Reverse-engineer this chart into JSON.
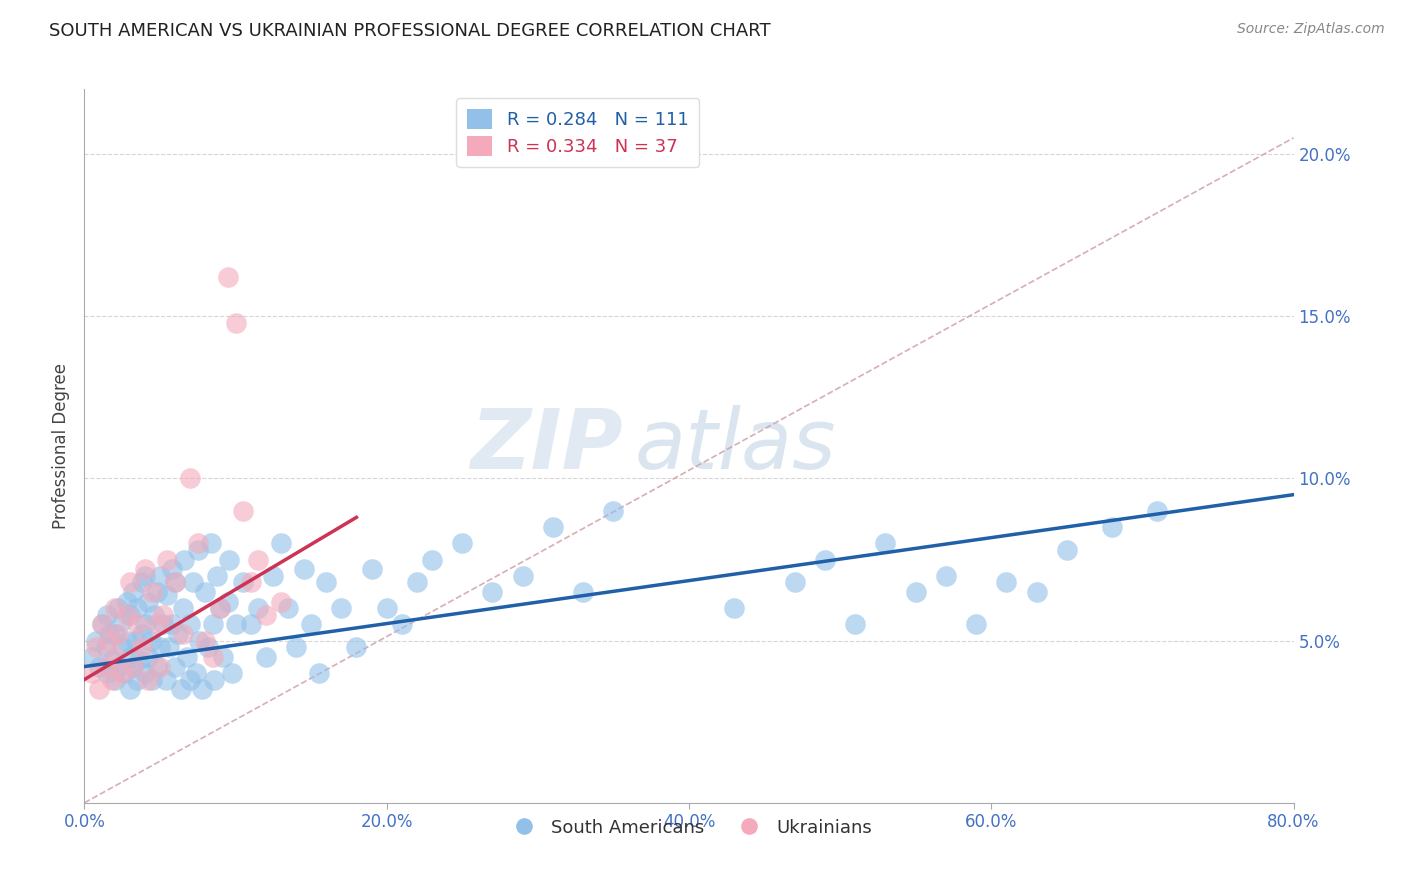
{
  "title": "SOUTH AMERICAN VS UKRAINIAN PROFESSIONAL DEGREE CORRELATION CHART",
  "source": "Source: ZipAtlas.com",
  "ylabel": "Professional Degree",
  "xlim": [
    0.0,
    0.8
  ],
  "ylim": [
    0.0,
    0.22
  ],
  "xticks": [
    0.0,
    0.2,
    0.4,
    0.6,
    0.8
  ],
  "xtick_labels": [
    "0.0%",
    "20.0%",
    "40.0%",
    "60.0%",
    "80.0%"
  ],
  "yticks": [
    0.0,
    0.05,
    0.1,
    0.15,
    0.2
  ],
  "ytick_labels": [
    "",
    "5.0%",
    "10.0%",
    "15.0%",
    "20.0%"
  ],
  "blue_color": "#92C0E8",
  "pink_color": "#F4AABB",
  "blue_line_color": "#2060A8",
  "pink_line_color": "#CC3355",
  "ref_line_color": "#D0A0A8",
  "legend_blue_label": "R = 0.284   N = 111",
  "legend_pink_label": "R = 0.334   N = 37",
  "bottom_legend_blue": "South Americans",
  "bottom_legend_pink": "Ukrainians",
  "watermark_zip": "ZIP",
  "watermark_atlas": "atlas",
  "blue_line_x0": 0.0,
  "blue_line_x1": 0.8,
  "blue_line_y0": 0.042,
  "blue_line_y1": 0.095,
  "pink_line_x0": 0.0,
  "pink_line_x1": 0.18,
  "pink_line_y0": 0.038,
  "pink_line_y1": 0.088,
  "ref_line_x0": 0.0,
  "ref_line_x1": 0.8,
  "ref_line_y0": 0.0,
  "ref_line_y1": 0.205,
  "background_color": "#FFFFFF",
  "title_color": "#222222",
  "axis_tick_color": "#4472C4",
  "grid_color": "#CCCCCC",
  "blue_scatter_x": [
    0.005,
    0.008,
    0.01,
    0.012,
    0.014,
    0.015,
    0.015,
    0.016,
    0.018,
    0.02,
    0.02,
    0.022,
    0.022,
    0.025,
    0.025,
    0.026,
    0.028,
    0.028,
    0.03,
    0.03,
    0.03,
    0.032,
    0.032,
    0.034,
    0.035,
    0.035,
    0.036,
    0.038,
    0.038,
    0.04,
    0.04,
    0.04,
    0.042,
    0.042,
    0.044,
    0.045,
    0.046,
    0.048,
    0.048,
    0.05,
    0.05,
    0.052,
    0.054,
    0.055,
    0.056,
    0.058,
    0.058,
    0.06,
    0.06,
    0.062,
    0.064,
    0.065,
    0.066,
    0.068,
    0.07,
    0.07,
    0.072,
    0.074,
    0.075,
    0.076,
    0.078,
    0.08,
    0.082,
    0.084,
    0.085,
    0.086,
    0.088,
    0.09,
    0.092,
    0.095,
    0.096,
    0.098,
    0.1,
    0.105,
    0.11,
    0.115,
    0.12,
    0.125,
    0.13,
    0.135,
    0.14,
    0.145,
    0.15,
    0.155,
    0.16,
    0.17,
    0.18,
    0.19,
    0.2,
    0.21,
    0.22,
    0.23,
    0.25,
    0.27,
    0.29,
    0.31,
    0.33,
    0.35,
    0.43,
    0.47,
    0.49,
    0.51,
    0.53,
    0.55,
    0.57,
    0.59,
    0.61,
    0.63,
    0.65,
    0.68,
    0.71
  ],
  "blue_scatter_y": [
    0.045,
    0.05,
    0.042,
    0.055,
    0.048,
    0.04,
    0.058,
    0.052,
    0.044,
    0.038,
    0.052,
    0.042,
    0.06,
    0.048,
    0.056,
    0.04,
    0.05,
    0.062,
    0.035,
    0.045,
    0.058,
    0.042,
    0.065,
    0.05,
    0.038,
    0.06,
    0.044,
    0.052,
    0.068,
    0.04,
    0.055,
    0.07,
    0.045,
    0.062,
    0.05,
    0.038,
    0.058,
    0.042,
    0.065,
    0.048,
    0.07,
    0.055,
    0.038,
    0.064,
    0.048,
    0.055,
    0.072,
    0.042,
    0.068,
    0.052,
    0.035,
    0.06,
    0.075,
    0.045,
    0.038,
    0.055,
    0.068,
    0.04,
    0.078,
    0.05,
    0.035,
    0.065,
    0.048,
    0.08,
    0.055,
    0.038,
    0.07,
    0.06,
    0.045,
    0.062,
    0.075,
    0.04,
    0.055,
    0.068,
    0.055,
    0.06,
    0.045,
    0.07,
    0.08,
    0.06,
    0.048,
    0.072,
    0.055,
    0.04,
    0.068,
    0.06,
    0.048,
    0.072,
    0.06,
    0.055,
    0.068,
    0.075,
    0.08,
    0.065,
    0.07,
    0.085,
    0.065,
    0.09,
    0.06,
    0.068,
    0.075,
    0.055,
    0.08,
    0.065,
    0.07,
    0.055,
    0.068,
    0.065,
    0.078,
    0.085,
    0.09
  ],
  "pink_scatter_x": [
    0.005,
    0.008,
    0.01,
    0.012,
    0.014,
    0.016,
    0.018,
    0.02,
    0.02,
    0.022,
    0.025,
    0.028,
    0.03,
    0.032,
    0.035,
    0.038,
    0.04,
    0.042,
    0.045,
    0.048,
    0.05,
    0.052,
    0.055,
    0.06,
    0.065,
    0.07,
    0.075,
    0.08,
    0.085,
    0.09,
    0.095,
    0.1,
    0.105,
    0.11,
    0.115,
    0.12,
    0.13
  ],
  "pink_scatter_y": [
    0.04,
    0.048,
    0.035,
    0.055,
    0.042,
    0.05,
    0.038,
    0.045,
    0.06,
    0.052,
    0.04,
    0.058,
    0.068,
    0.042,
    0.055,
    0.048,
    0.072,
    0.038,
    0.065,
    0.055,
    0.042,
    0.058,
    0.075,
    0.068,
    0.052,
    0.1,
    0.08,
    0.05,
    0.045,
    0.06,
    0.162,
    0.148,
    0.09,
    0.068,
    0.075,
    0.058,
    0.062
  ]
}
